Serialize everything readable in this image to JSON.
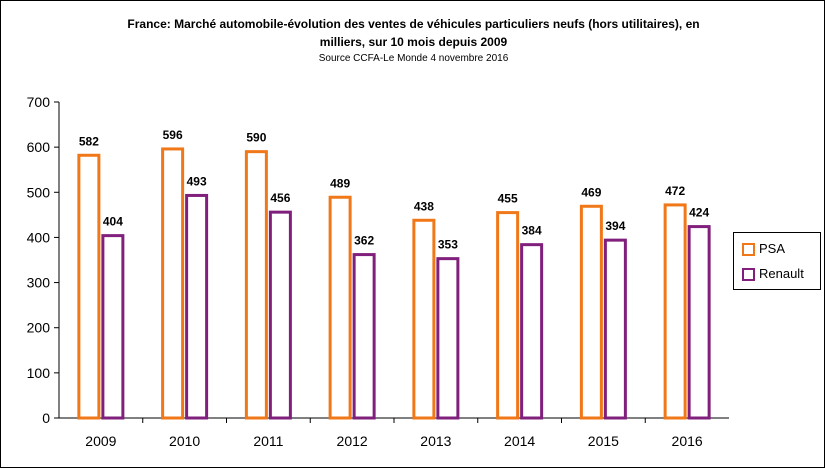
{
  "chart_data": {
    "type": "bar",
    "title_lines": [
      "France: Marché automobile-évolution des ventes de véhicules particuliers neufs (hors utilitaires), en",
      "milliers, sur 10 mois depuis 2009"
    ],
    "subtitle": "Source CCFA-Le Monde 4 novembre 2016",
    "categories": [
      "2009",
      "2010",
      "2011",
      "2012",
      "2013",
      "2014",
      "2015",
      "2016"
    ],
    "series": [
      {
        "name": "PSA",
        "values": [
          582,
          596,
          590,
          489,
          438,
          455,
          469,
          472
        ],
        "color": "#f07818"
      },
      {
        "name": "Renault",
        "values": [
          404,
          493,
          456,
          362,
          353,
          384,
          394,
          424
        ],
        "color": "#80207c"
      }
    ],
    "ylim": [
      0,
      700
    ],
    "yticks": [
      0,
      100,
      200,
      300,
      400,
      500,
      600,
      700
    ],
    "grid": false,
    "legend_position": "right",
    "bar_style": "outline"
  }
}
